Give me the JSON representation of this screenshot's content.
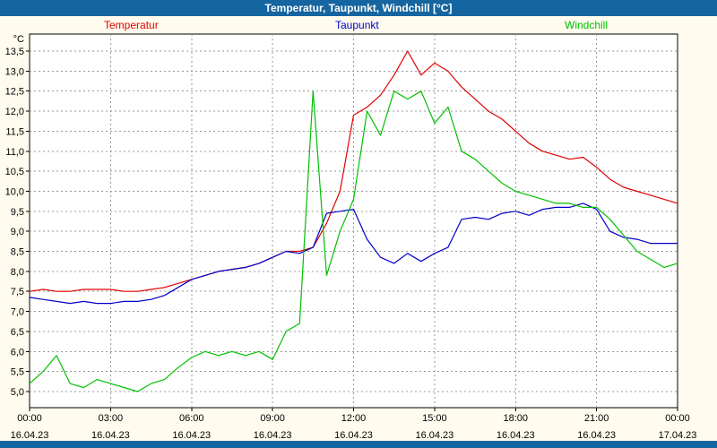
{
  "window": {
    "title": "Temperatur, Taupunkt, Windchill [°C]"
  },
  "colors": {
    "titlebar": "#1565a0",
    "background": "#fffbee",
    "plot_bg": "#ffffff",
    "grid": "#989898",
    "axis": "#000000"
  },
  "chart_data": {
    "type": "line",
    "title": "Temperatur, Taupunkt, Windchill [°C]",
    "ylabel": "°C",
    "xlabel": "",
    "ylim": [
      5.0,
      13.5
    ],
    "y_step": 0.5,
    "grid": true,
    "legend_position": "top",
    "x_hours_step": 0.5,
    "x_ticks": [
      {
        "hour": 0,
        "time": "00:00",
        "date": "16.04.23"
      },
      {
        "hour": 3,
        "time": "03:00",
        "date": "16.04.23"
      },
      {
        "hour": 6,
        "time": "06:00",
        "date": "16.04.23"
      },
      {
        "hour": 9,
        "time": "09:00",
        "date": "16.04.23"
      },
      {
        "hour": 12,
        "time": "12:00",
        "date": "16.04.23"
      },
      {
        "hour": 15,
        "time": "15:00",
        "date": "16.04.23"
      },
      {
        "hour": 18,
        "time": "18:00",
        "date": "16.04.23"
      },
      {
        "hour": 21,
        "time": "21:00",
        "date": "16.04.23"
      },
      {
        "hour": 24,
        "time": "00:00",
        "date": "17.04.23"
      }
    ],
    "series": [
      {
        "name": "Temperatur",
        "color": "#e00000",
        "values": [
          7.5,
          7.55,
          7.5,
          7.5,
          7.55,
          7.55,
          7.55,
          7.5,
          7.5,
          7.55,
          7.6,
          7.7,
          7.8,
          7.9,
          8.0,
          8.05,
          8.1,
          8.2,
          8.35,
          8.5,
          8.5,
          8.6,
          9.2,
          10.0,
          11.9,
          12.1,
          12.4,
          12.9,
          13.5,
          12.9,
          13.2,
          13.0,
          12.6,
          12.3,
          12.0,
          11.8,
          11.5,
          11.2,
          11.0,
          10.9,
          10.8,
          10.85,
          10.6,
          10.3,
          10.1,
          10.0,
          9.9,
          9.8,
          9.7
        ]
      },
      {
        "name": "Taupunkt",
        "color": "#0000c8",
        "values": [
          7.35,
          7.3,
          7.25,
          7.2,
          7.25,
          7.2,
          7.2,
          7.25,
          7.25,
          7.3,
          7.4,
          7.6,
          7.8,
          7.9,
          8.0,
          8.05,
          8.1,
          8.2,
          8.35,
          8.5,
          8.45,
          8.6,
          9.45,
          9.5,
          9.55,
          8.8,
          8.35,
          8.2,
          8.45,
          8.25,
          8.45,
          8.6,
          9.3,
          9.35,
          9.3,
          9.45,
          9.5,
          9.4,
          9.55,
          9.6,
          9.6,
          9.7,
          9.55,
          9.0,
          8.85,
          8.8,
          8.7,
          8.7,
          8.7
        ]
      },
      {
        "name": "Windchill",
        "color": "#00c000",
        "values": [
          5.2,
          5.5,
          5.9,
          5.2,
          5.1,
          5.3,
          5.2,
          5.1,
          5.0,
          5.2,
          5.3,
          5.6,
          5.85,
          6.0,
          5.9,
          6.0,
          5.9,
          6.0,
          5.8,
          6.5,
          6.7,
          12.5,
          7.9,
          9.0,
          9.8,
          12.0,
          11.4,
          12.5,
          12.3,
          12.5,
          11.7,
          12.1,
          11.0,
          10.8,
          10.5,
          10.2,
          10.0,
          9.9,
          9.8,
          9.7,
          9.7,
          9.6,
          9.6,
          9.3,
          8.9,
          8.5,
          8.3,
          8.1,
          8.2
        ]
      }
    ]
  }
}
